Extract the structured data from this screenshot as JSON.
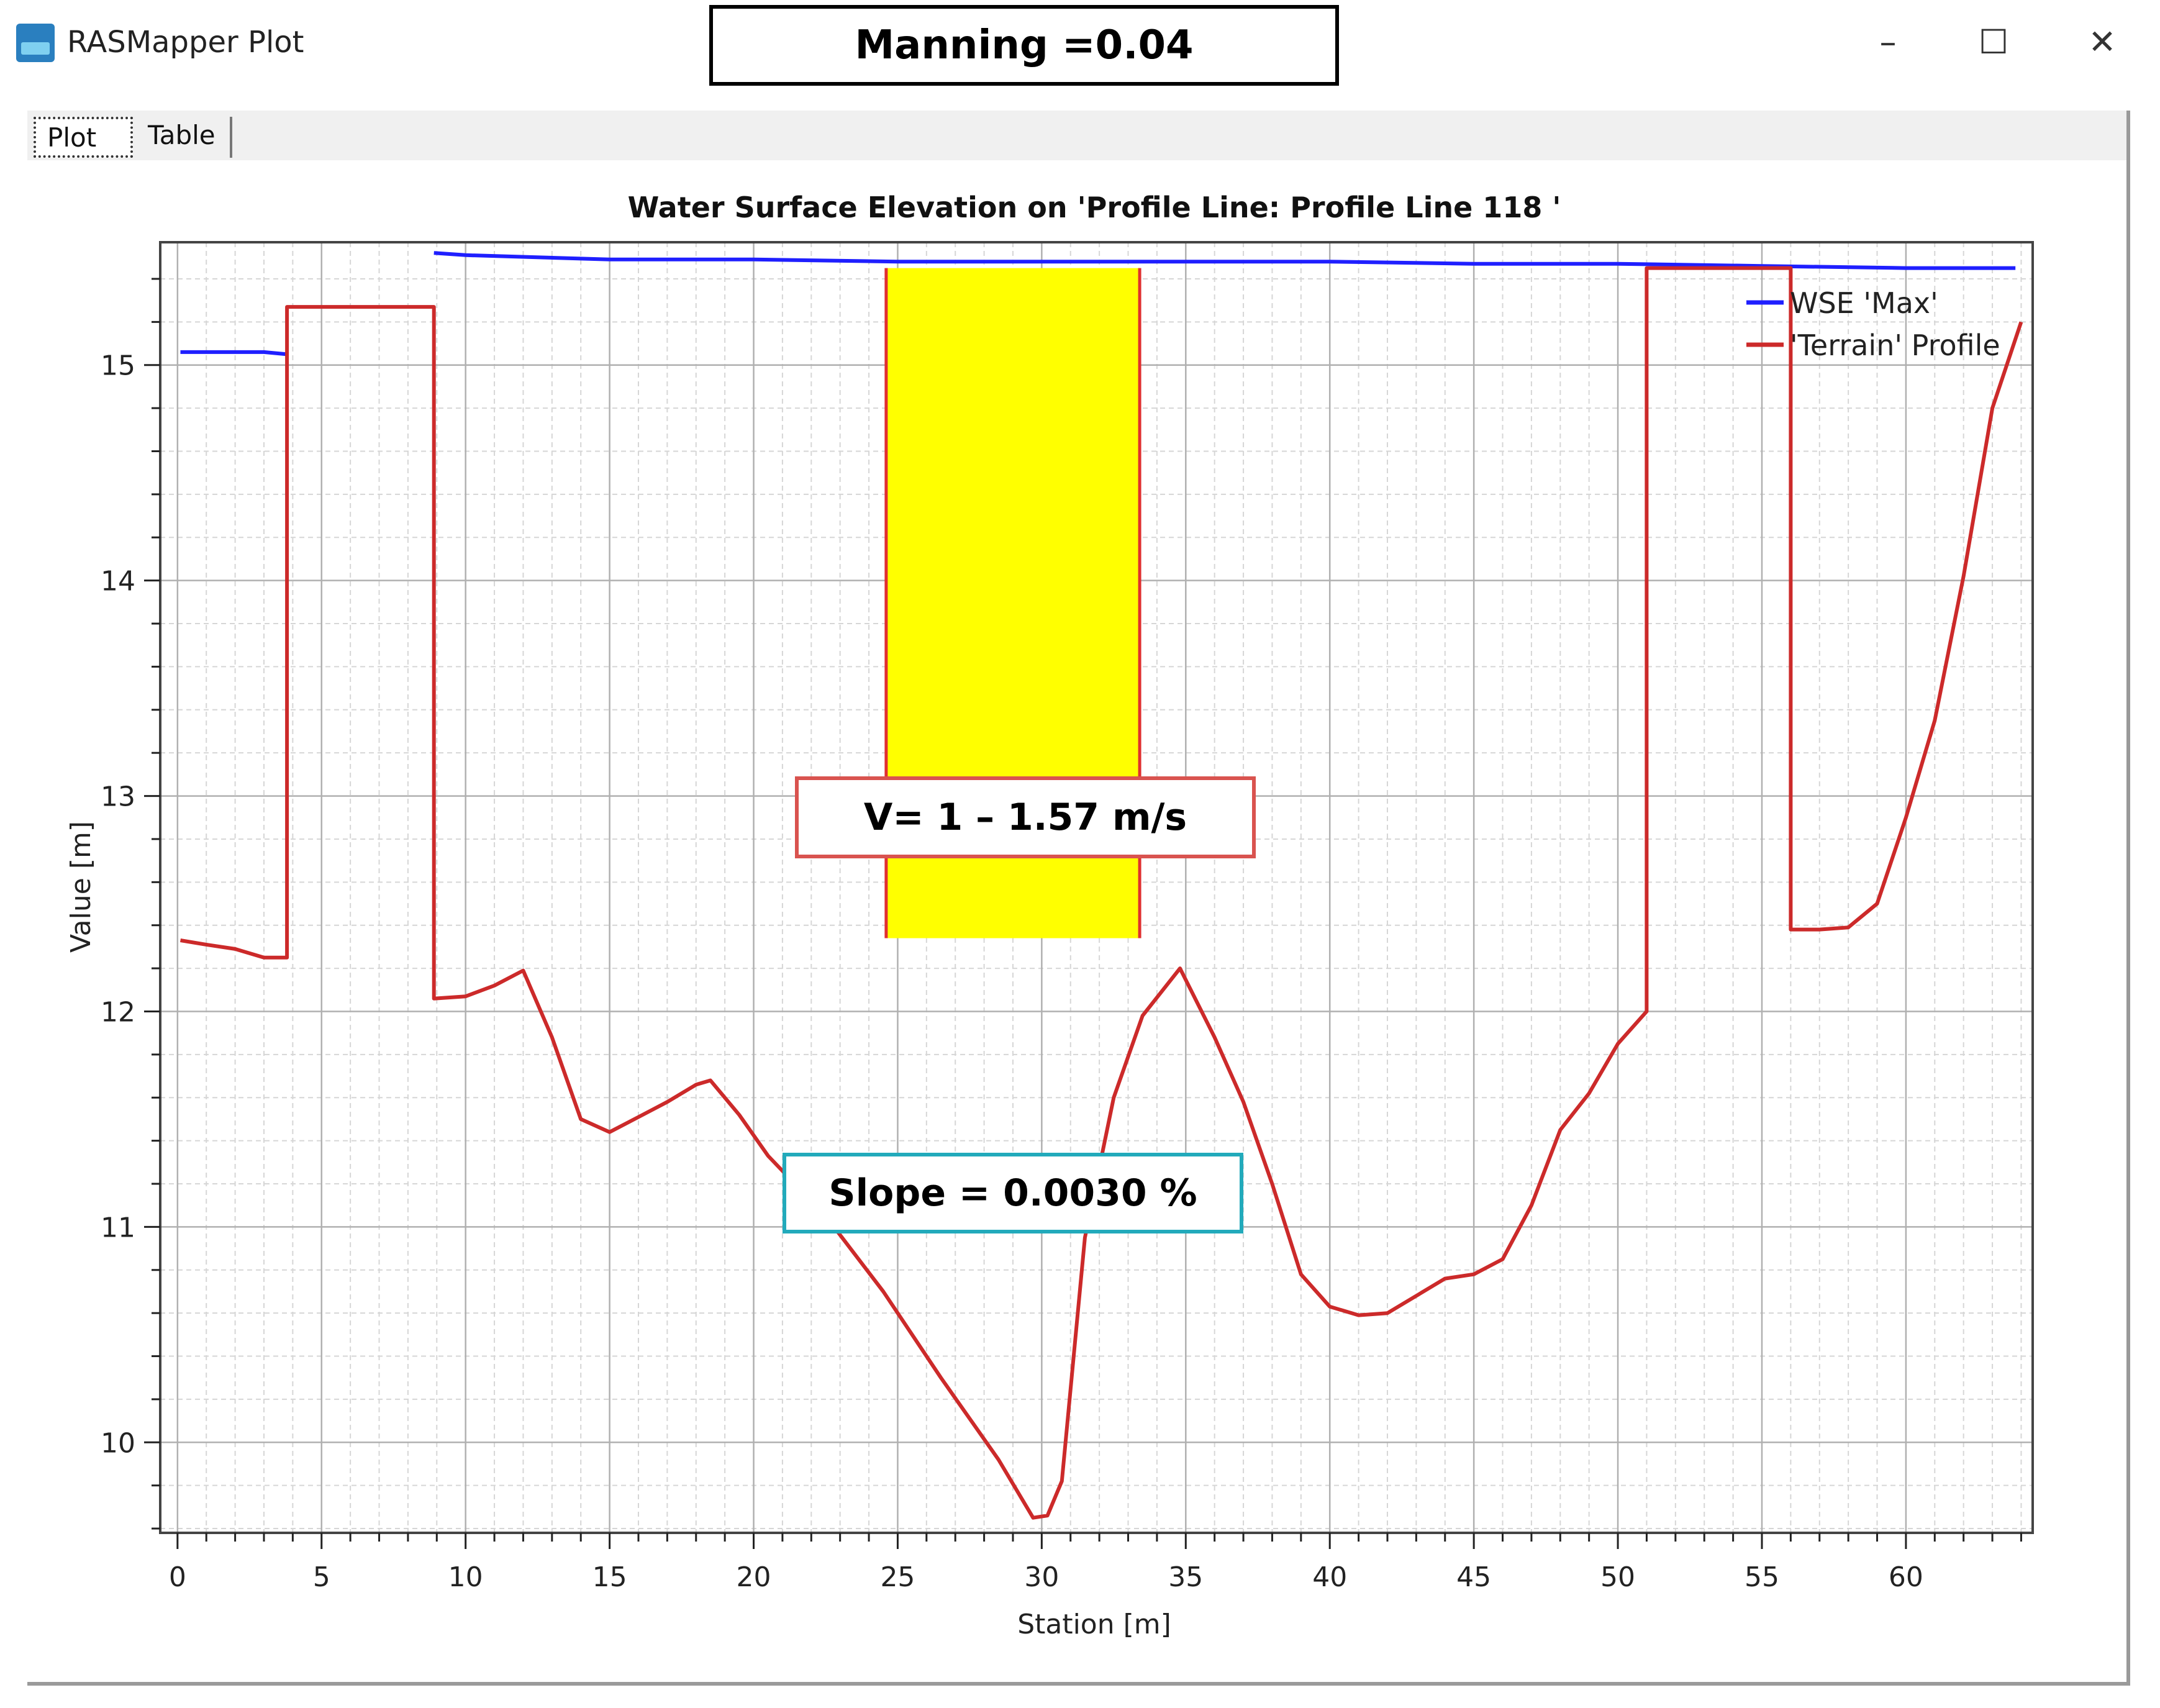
{
  "window": {
    "title": "RASMapper Plot",
    "minimize_label": "–",
    "maximize_label": "☐",
    "close_label": "✕"
  },
  "annotations": {
    "manning": "Manning =0.04",
    "velocity": "V= 1 – 1.57 m/s",
    "slope": "Slope = 0.0030 %"
  },
  "tabs": [
    {
      "label": "Plot",
      "active": true
    },
    {
      "label": "Table",
      "active": false
    }
  ],
  "chart_data": {
    "type": "line",
    "title": "Water Surface Elevation on 'Profile Line: Profile Line 118 '",
    "xlabel": "Station [m]",
    "ylabel": "Value [m]",
    "xlim": [
      -0.6,
      64.4
    ],
    "ylim": [
      9.58,
      15.57
    ],
    "x_ticks": [
      0,
      5,
      10,
      15,
      20,
      25,
      30,
      35,
      40,
      45,
      50,
      55,
      60
    ],
    "y_ticks": [
      10,
      11,
      12,
      13,
      14,
      15
    ],
    "grid": true,
    "legend_position": "top-right",
    "highlight_band": {
      "x": [
        24.6,
        33.4
      ],
      "y_top": 15.45,
      "y_bottom": 12.34,
      "fill": "#ffff00",
      "edge": "#e03030"
    },
    "series": [
      {
        "name": "WSE 'Max'",
        "color": "#1f1fff",
        "segments": [
          [
            [
              0.1,
              15.06
            ],
            [
              2.0,
              15.06
            ],
            [
              3.0,
              15.06
            ],
            [
              3.8,
              15.05
            ]
          ],
          [
            [
              8.9,
              15.52
            ],
            [
              10,
              15.51
            ],
            [
              15,
              15.49
            ],
            [
              20,
              15.49
            ],
            [
              25,
              15.48
            ],
            [
              30,
              15.48
            ],
            [
              35,
              15.48
            ],
            [
              40,
              15.48
            ],
            [
              45,
              15.47
            ],
            [
              50,
              15.47
            ],
            [
              55,
              15.46
            ],
            [
              60,
              15.45
            ],
            [
              63.8,
              15.45
            ]
          ]
        ]
      },
      {
        "name": "'Terrain' Profile",
        "color": "#cc2a2a",
        "segments": [
          [
            [
              0.1,
              12.33
            ],
            [
              1.0,
              12.31
            ],
            [
              2.0,
              12.29
            ],
            [
              3.0,
              12.25
            ],
            [
              3.8,
              12.25
            ],
            [
              3.8,
              15.27
            ],
            [
              8.9,
              15.27
            ],
            [
              8.9,
              12.06
            ],
            [
              10.0,
              12.07
            ],
            [
              11.0,
              12.12
            ],
            [
              12.0,
              12.19
            ],
            [
              13.0,
              11.88
            ],
            [
              14.0,
              11.5
            ],
            [
              15.0,
              11.44
            ],
            [
              16.0,
              11.51
            ],
            [
              17.0,
              11.58
            ],
            [
              18.0,
              11.66
            ],
            [
              18.5,
              11.68
            ],
            [
              19.5,
              11.52
            ],
            [
              20.5,
              11.33
            ],
            [
              22.5,
              11.05
            ],
            [
              24.5,
              10.7
            ],
            [
              26.5,
              10.3
            ],
            [
              28.5,
              9.92
            ],
            [
              29.7,
              9.65
            ],
            [
              30.2,
              9.66
            ],
            [
              30.7,
              9.82
            ],
            [
              31.5,
              10.95
            ],
            [
              32.5,
              11.6
            ],
            [
              33.5,
              11.98
            ],
            [
              34.8,
              12.2
            ],
            [
              36.0,
              11.88
            ],
            [
              37.0,
              11.58
            ],
            [
              38.0,
              11.2
            ],
            [
              39.0,
              10.78
            ],
            [
              40.0,
              10.63
            ],
            [
              41.0,
              10.59
            ],
            [
              42.0,
              10.6
            ],
            [
              43.0,
              10.68
            ],
            [
              44.0,
              10.76
            ],
            [
              45.0,
              10.78
            ],
            [
              46.0,
              10.85
            ],
            [
              47.0,
              11.1
            ],
            [
              48.0,
              11.45
            ],
            [
              49.0,
              11.62
            ],
            [
              50.0,
              11.85
            ],
            [
              51.0,
              12.0
            ],
            [
              51.0,
              15.45
            ],
            [
              56.0,
              15.45
            ],
            [
              56.0,
              12.38
            ],
            [
              57.0,
              12.38
            ],
            [
              58.0,
              12.39
            ],
            [
              59.0,
              12.5
            ],
            [
              60.0,
              12.9
            ],
            [
              61.0,
              13.35
            ],
            [
              62.0,
              14.02
            ],
            [
              63.0,
              14.8
            ],
            [
              64.0,
              15.2
            ]
          ]
        ]
      }
    ]
  }
}
